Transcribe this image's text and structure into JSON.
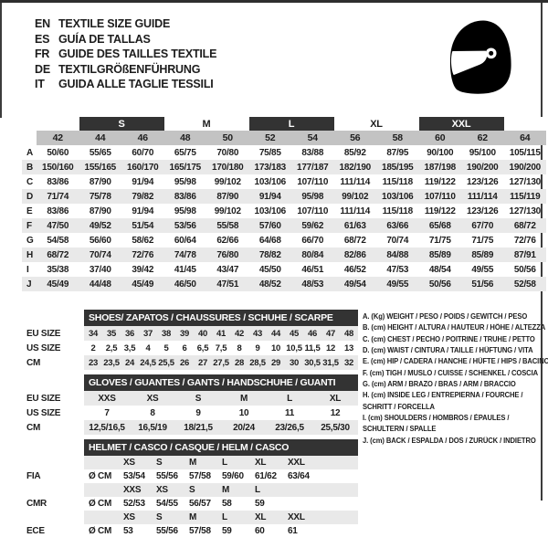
{
  "colors": {
    "band_dark": "#333333",
    "header_gray": "#c3c3c3",
    "stripe_gray": "#e9e9e9",
    "text": "#1d1d1d",
    "icon": "#000000"
  },
  "languages": [
    {
      "code": "EN",
      "label": "TEXTILE SIZE GUIDE"
    },
    {
      "code": "ES",
      "label": "GUÍA DE TALLAS"
    },
    {
      "code": "FR",
      "label": "GUIDE DES TAILLES TEXTILE"
    },
    {
      "code": "DE",
      "label": "TEXTILGRÖßENFÜHRUNG"
    },
    {
      "code": "IT",
      "label": "GUIDA ALLE TAGLIE TESSILI"
    }
  ],
  "main_table": {
    "size_bands": [
      {
        "label": "S",
        "dark": true
      },
      {
        "label": "M",
        "dark": false
      },
      {
        "label": "L",
        "dark": true
      },
      {
        "label": "XL",
        "dark": false
      },
      {
        "label": "XXL",
        "dark": true
      }
    ],
    "columns": [
      "42",
      "44",
      "46",
      "48",
      "50",
      "52",
      "54",
      "56",
      "58",
      "60",
      "62",
      "64"
    ],
    "rows": [
      {
        "label": "A",
        "values": [
          "50/60",
          "55/65",
          "60/70",
          "65/75",
          "70/80",
          "75/85",
          "83/88",
          "85/92",
          "87/95",
          "90/100",
          "95/100",
          "105/115"
        ]
      },
      {
        "label": "B",
        "values": [
          "150/160",
          "155/165",
          "160/170",
          "165/175",
          "170/180",
          "173/183",
          "177/187",
          "182/190",
          "185/195",
          "187/198",
          "190/200",
          "190/200"
        ]
      },
      {
        "label": "C",
        "values": [
          "83/86",
          "87/90",
          "91/94",
          "95/98",
          "99/102",
          "103/106",
          "107/110",
          "111/114",
          "115/118",
          "119/122",
          "123/126",
          "127/130"
        ]
      },
      {
        "label": "D",
        "values": [
          "71/74",
          "75/78",
          "79/82",
          "83/86",
          "87/90",
          "91/94",
          "95/98",
          "99/102",
          "103/106",
          "107/110",
          "111/114",
          "115/119"
        ]
      },
      {
        "label": "E",
        "values": [
          "83/86",
          "87/90",
          "91/94",
          "95/98",
          "99/102",
          "103/106",
          "107/110",
          "111/114",
          "115/118",
          "119/122",
          "123/126",
          "127/130"
        ]
      },
      {
        "label": "F",
        "values": [
          "47/50",
          "49/52",
          "51/54",
          "53/56",
          "55/58",
          "57/60",
          "59/62",
          "61/63",
          "63/66",
          "65/68",
          "67/70",
          "68/72"
        ]
      },
      {
        "label": "G",
        "values": [
          "54/58",
          "56/60",
          "58/62",
          "60/64",
          "62/66",
          "64/68",
          "66/70",
          "68/72",
          "70/74",
          "71/75",
          "71/75",
          "72/76"
        ]
      },
      {
        "label": "H",
        "values": [
          "68/72",
          "70/74",
          "72/76",
          "74/78",
          "76/80",
          "78/82",
          "80/84",
          "82/86",
          "84/88",
          "85/89",
          "85/89",
          "87/91"
        ]
      },
      {
        "label": "I",
        "values": [
          "35/38",
          "37/40",
          "39/42",
          "41/45",
          "43/47",
          "45/50",
          "46/51",
          "46/52",
          "47/53",
          "48/54",
          "49/55",
          "50/56"
        ]
      },
      {
        "label": "J",
        "values": [
          "45/49",
          "44/48",
          "45/49",
          "46/50",
          "47/51",
          "48/52",
          "48/53",
          "49/54",
          "49/55",
          "50/56",
          "51/56",
          "52/58"
        ]
      }
    ]
  },
  "shoes_table": {
    "title": "SHOES/ ZAPATOS / CHAUSSURES / SCHUHE / SCARPE",
    "rows": [
      {
        "label": "EU SIZE",
        "values": [
          "34",
          "35",
          "36",
          "37",
          "38",
          "39",
          "40",
          "41",
          "42",
          "43",
          "44",
          "45",
          "46",
          "47",
          "48"
        ]
      },
      {
        "label": "US SIZE",
        "values": [
          "2",
          "2,5",
          "3,5",
          "4",
          "5",
          "6",
          "6,5",
          "7,5",
          "8",
          "9",
          "10",
          "10,5",
          "11,5",
          "12",
          "13"
        ]
      },
      {
        "label": "CM",
        "values": [
          "23",
          "23,5",
          "24",
          "24,5",
          "25,5",
          "26",
          "27",
          "27,5",
          "28",
          "28,5",
          "29",
          "30",
          "30,5",
          "31,5",
          "32"
        ]
      }
    ]
  },
  "gloves_table": {
    "title": "GLOVES / GUANTES / GANTS / HANDSCHUHE / GUANTI",
    "rows": [
      {
        "label": "EU SIZE",
        "values": [
          "XXS",
          "XS",
          "S",
          "M",
          "L",
          "XL"
        ]
      },
      {
        "label": "US SIZE",
        "values": [
          "7",
          "8",
          "9",
          "10",
          "11",
          "12"
        ]
      },
      {
        "label": "CM",
        "values": [
          "12,5/16,5",
          "16,5/19",
          "18/21,5",
          "20/24",
          "23/26,5",
          "25,5/30"
        ]
      }
    ]
  },
  "helmet_table": {
    "title": "HELMET / CASCO / CASQUE / HELM / CASCO",
    "diameter_label": "Ø CM",
    "sections": [
      {
        "label": "FIA",
        "sizes": [
          "XS",
          "S",
          "M",
          "L",
          "XL",
          "XXL"
        ],
        "values": [
          "53/54",
          "55/56",
          "57/58",
          "59/60",
          "61/62",
          "63/64"
        ]
      },
      {
        "label": "CMR",
        "sizes": [
          "XXS",
          "XS",
          "S",
          "M",
          "L"
        ],
        "values": [
          "52/53",
          "54/55",
          "56/57",
          "58",
          "59"
        ]
      },
      {
        "label": "ECE",
        "sizes": [
          "XS",
          "S",
          "M",
          "L",
          "XL",
          "XXL"
        ],
        "values": [
          "53",
          "55/56",
          "57/58",
          "59",
          "60",
          "61"
        ]
      }
    ]
  },
  "legend": {
    "lines": [
      "A. (Kg) WEIGHT / PESO / POIDS / GEWITCH / PESO",
      "B. (cm) HEIGHT / ALTURA / HAUTEUR / HÖHE / ALTEZZA",
      "C. (cm) CHEST / PECHO / POITRINE / TRUHE / PETTO",
      "D. (cm) WAIST / CINTURA / TAILLE / HÜFTUNG / VITA",
      "E. (cm) HIP / CADERA / HANCHE / HÜFTE / HIPS / BACINO",
      "F. (cm) TIGH / MUSLO / CUISSE / SCHENKEL / COSCIA",
      "G. (cm) ARM / BRAZO / BRAS / ARM / BRACCIO",
      "H. (cm) INSIDE LEG / ENTREPIERNA / FOURCHE /",
      "SCHRITT / FORCELLA",
      "I. (cm) SHOULDERS / HOMBROS / ÉPAULES /",
      "SCHULTERN / SPALLE",
      "J. (cm) BACK / ESPALDA / DOS / ZURÜCK / INDIETRO"
    ]
  }
}
